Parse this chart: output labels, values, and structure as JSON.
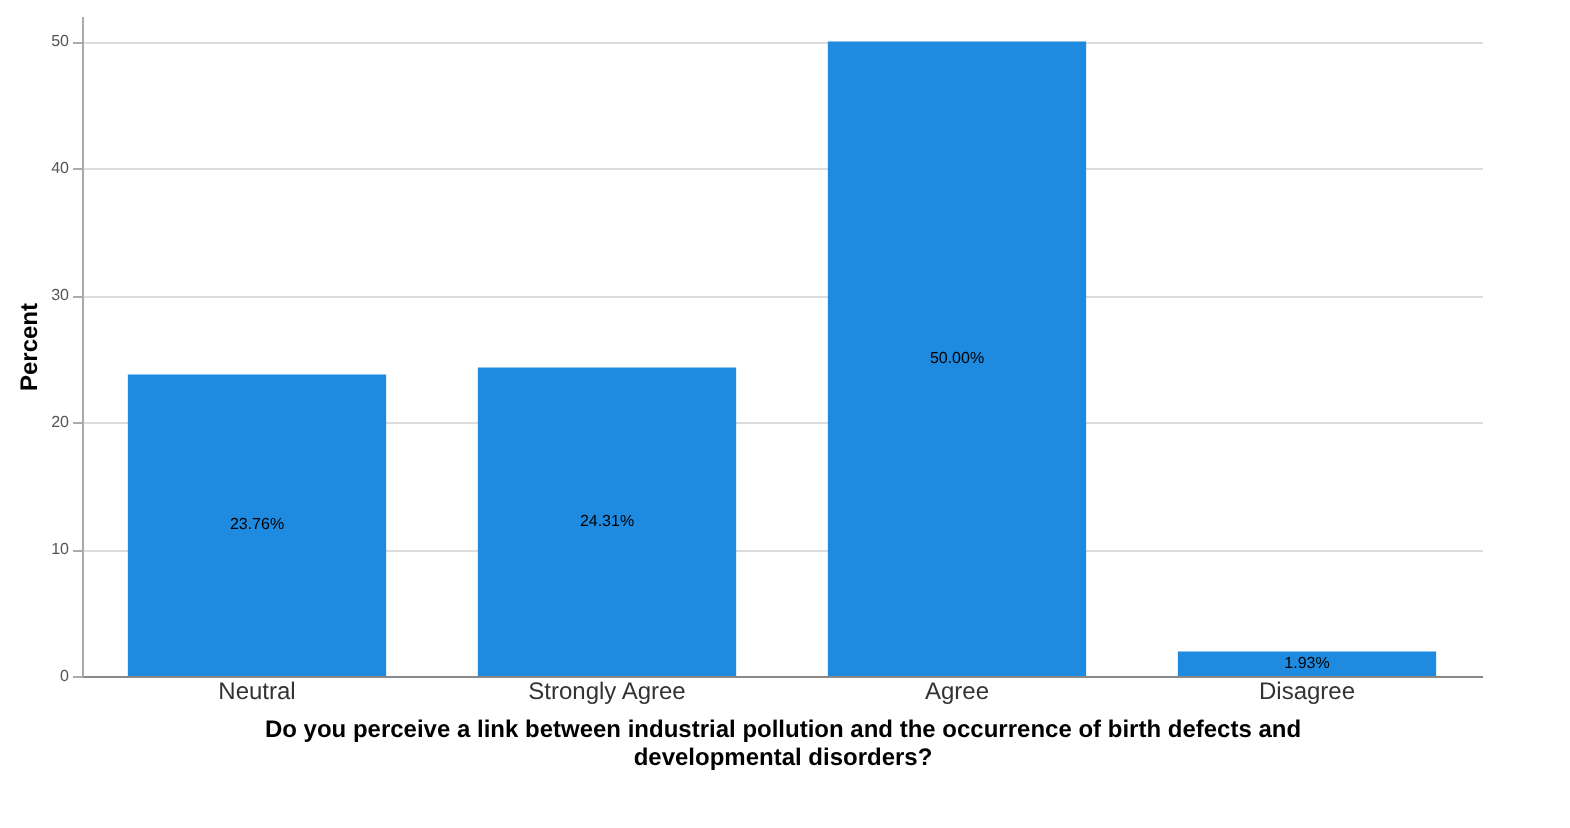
{
  "chart_data": {
    "type": "bar",
    "xlabel": "Do you perceive a link between industrial pollution and the occurrence of birth defects and\ndevelopmental disorders?",
    "ylabel": "Percent",
    "categories": [
      "Neutral",
      "Strongly Agree",
      "Agree",
      "Disagree"
    ],
    "values": [
      23.76,
      24.31,
      50.0,
      1.93
    ],
    "value_labels": [
      "23.76%",
      "24.31%",
      "50.00%",
      "1.93%"
    ],
    "color": "#1f8be0",
    "ylim": [
      0,
      52
    ],
    "yticks": [
      0,
      10,
      20,
      30,
      40,
      50
    ],
    "grid": "y"
  }
}
